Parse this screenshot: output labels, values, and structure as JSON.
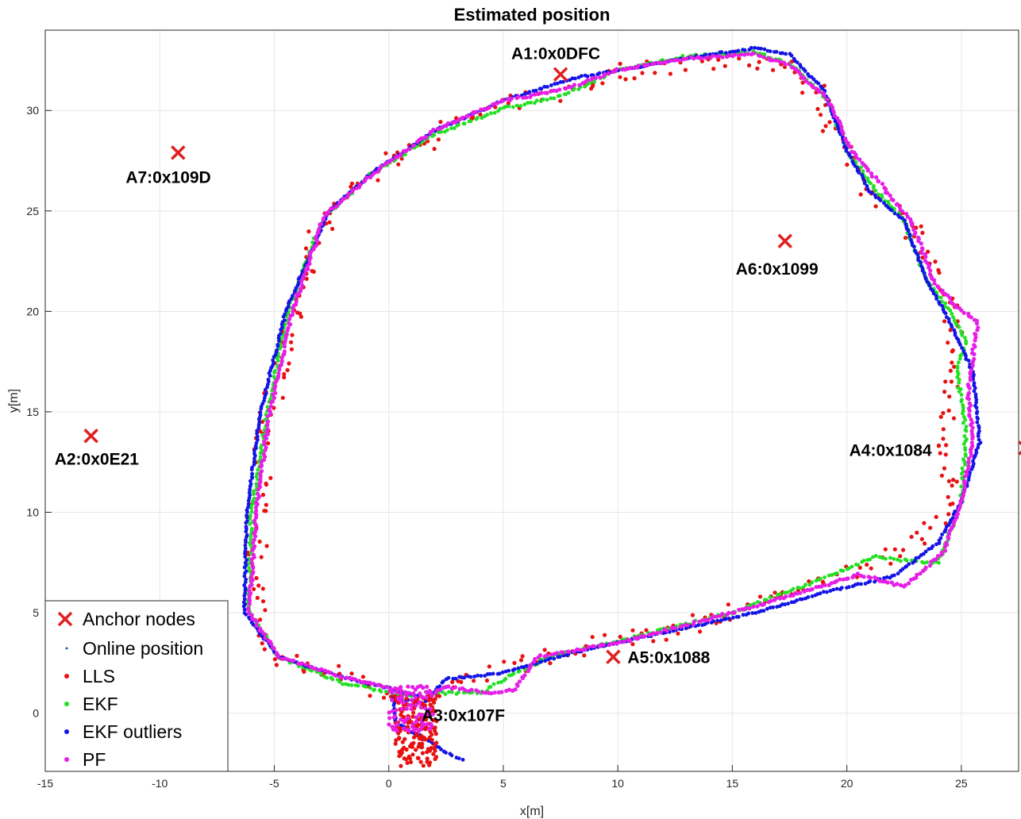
{
  "chart_data": {
    "type": "scatter",
    "title": "Estimated position",
    "xlabel": "x[m]",
    "ylabel": "y[m]",
    "xlim": [
      -15,
      27.5
    ],
    "ylim": [
      -2.9,
      34
    ],
    "xticks": [
      -15,
      -10,
      -5,
      0,
      5,
      10,
      15,
      20,
      25
    ],
    "yticks": [
      0,
      5,
      10,
      15,
      20,
      25,
      30
    ],
    "grid": true,
    "legend_position": "bottom-left",
    "colors": {
      "anchor": "#e02020",
      "online": "#1f5fa8",
      "lls": "#e81010",
      "ekf": "#22e022",
      "ekf_outliers": "#1414e6",
      "pf": "#e61ee6"
    },
    "anchors": [
      {
        "label": "A1:0x0DFC",
        "x": 7.5,
        "y": 31.8
      },
      {
        "label": "A2:0x0E21",
        "x": -13.0,
        "y": 13.8
      },
      {
        "label": "A3:0x107F",
        "x": 1.5,
        "y": 0.0
      },
      {
        "label": "A4:0x1084",
        "x": 27.8,
        "y": 13.2
      },
      {
        "label": "A5:0x1088",
        "x": 9.8,
        "y": 2.8
      },
      {
        "label": "A6:0x1099",
        "x": 17.3,
        "y": 23.5
      },
      {
        "label": "A7:0x109D",
        "x": -9.2,
        "y": 27.9
      }
    ],
    "series": [
      {
        "name": "Anchor nodes",
        "marker": "x"
      },
      {
        "name": "Online position",
        "marker": "dot"
      },
      {
        "name": "LLS",
        "marker": "dot",
        "path": [
          [
            1.0,
            0.2
          ],
          [
            -2.0,
            1.8
          ],
          [
            -4.5,
            2.6
          ],
          [
            -5.5,
            3.5
          ],
          [
            -5.9,
            6.0
          ],
          [
            -5.7,
            10.0
          ],
          [
            -5.2,
            15.0
          ],
          [
            -4.2,
            20.0
          ],
          [
            -2.8,
            24.8
          ],
          [
            -0.5,
            27.0
          ],
          [
            2.0,
            28.8
          ],
          [
            5.0,
            30.3
          ],
          [
            7.5,
            30.9
          ],
          [
            10.0,
            31.9
          ],
          [
            13.0,
            32.4
          ],
          [
            16.0,
            32.5
          ],
          [
            17.5,
            32.1
          ],
          [
            19.0,
            30.5
          ],
          [
            19.8,
            28.0
          ],
          [
            21.0,
            26.2
          ],
          [
            22.8,
            24.5
          ],
          [
            23.8,
            21.5
          ],
          [
            24.8,
            19.5
          ],
          [
            24.5,
            17.0
          ],
          [
            24.3,
            14.0
          ],
          [
            24.6,
            11.0
          ],
          [
            23.0,
            8.5
          ],
          [
            20.5,
            7.2
          ],
          [
            17.5,
            6.0
          ],
          [
            14.5,
            4.8
          ],
          [
            10.0,
            3.6
          ],
          [
            6.5,
            2.8
          ],
          [
            3.5,
            1.8
          ],
          [
            1.5,
            0.5
          ]
        ]
      },
      {
        "name": "EKF",
        "marker": "dot",
        "path": [
          [
            1.0,
            0.8
          ],
          [
            -2.0,
            1.5
          ],
          [
            -4.8,
            2.8
          ],
          [
            -6.1,
            5.0
          ],
          [
            -6.0,
            10.0
          ],
          [
            -5.3,
            15.0
          ],
          [
            -4.4,
            20.0
          ],
          [
            -2.9,
            24.6
          ],
          [
            -0.8,
            26.8
          ],
          [
            2.0,
            28.8
          ],
          [
            5.0,
            30.1
          ],
          [
            7.5,
            30.7
          ],
          [
            10.0,
            32.0
          ],
          [
            13.0,
            32.7
          ],
          [
            16.0,
            32.9
          ],
          [
            17.6,
            32.3
          ],
          [
            19.2,
            30.5
          ],
          [
            20.0,
            28.0
          ],
          [
            21.3,
            26.0
          ],
          [
            22.5,
            24.5
          ],
          [
            23.5,
            21.5
          ],
          [
            24.5,
            20.0
          ],
          [
            25.2,
            18.5
          ],
          [
            24.8,
            17.0
          ],
          [
            25.2,
            14.0
          ],
          [
            25.0,
            10.5
          ],
          [
            24.0,
            7.5
          ],
          [
            22.5,
            7.6
          ],
          [
            21.3,
            7.8
          ],
          [
            18.5,
            6.5
          ],
          [
            15.0,
            5.0
          ],
          [
            10.0,
            3.6
          ],
          [
            7.0,
            2.8
          ],
          [
            5.5,
            2.0
          ],
          [
            4.0,
            1.0
          ],
          [
            2.0,
            1.0
          ]
        ]
      },
      {
        "name": "EKF outliers",
        "marker": "dot",
        "path": [
          [
            1.5,
            0.8
          ],
          [
            -2.0,
            1.8
          ],
          [
            -4.8,
            2.8
          ],
          [
            -6.3,
            5.0
          ],
          [
            -6.2,
            10.0
          ],
          [
            -5.6,
            15.0
          ],
          [
            -4.5,
            20.0
          ],
          [
            -2.6,
            25.0
          ],
          [
            -0.6,
            27.0
          ],
          [
            2.0,
            29.0
          ],
          [
            5.0,
            30.5
          ],
          [
            8.0,
            31.6
          ],
          [
            11.0,
            32.2
          ],
          [
            14.0,
            32.8
          ],
          [
            16.0,
            33.1
          ],
          [
            17.5,
            32.8
          ],
          [
            19.0,
            31.0
          ],
          [
            20.0,
            28.0
          ],
          [
            21.0,
            26.0
          ],
          [
            22.5,
            24.5
          ],
          [
            23.5,
            21.5
          ],
          [
            24.5,
            19.5
          ],
          [
            25.5,
            17.0
          ],
          [
            25.8,
            13.5
          ],
          [
            25.0,
            10.5
          ],
          [
            24.0,
            8.5
          ],
          [
            22.0,
            6.8
          ],
          [
            19.0,
            6.0
          ],
          [
            16.0,
            5.0
          ],
          [
            12.0,
            4.0
          ],
          [
            8.0,
            3.0
          ],
          [
            5.0,
            2.0
          ],
          [
            2.5,
            1.7
          ],
          [
            1.5,
            0.5
          ],
          [
            0.2,
            0.8
          ],
          [
            0.3,
            -0.5
          ],
          [
            1.5,
            -1.2
          ],
          [
            2.5,
            -2.0
          ],
          [
            3.2,
            -2.3
          ]
        ]
      },
      {
        "name": "PF",
        "marker": "dot",
        "path": [
          [
            1.0,
            1.0
          ],
          [
            -2.0,
            1.8
          ],
          [
            -4.8,
            2.8
          ],
          [
            -6.1,
            5.0
          ],
          [
            -5.8,
            10.0
          ],
          [
            -5.2,
            15.0
          ],
          [
            -4.2,
            20.0
          ],
          [
            -2.8,
            24.8
          ],
          [
            -0.5,
            27.0
          ],
          [
            2.0,
            29.0
          ],
          [
            5.0,
            30.5
          ],
          [
            7.5,
            31.0
          ],
          [
            10.0,
            32.0
          ],
          [
            13.0,
            32.6
          ],
          [
            16.0,
            32.8
          ],
          [
            17.6,
            32.2
          ],
          [
            19.2,
            30.5
          ],
          [
            20.2,
            28.0
          ],
          [
            21.5,
            26.3
          ],
          [
            22.8,
            24.5
          ],
          [
            23.8,
            21.5
          ],
          [
            24.8,
            20.2
          ],
          [
            25.7,
            19.5
          ],
          [
            25.3,
            16.0
          ],
          [
            25.5,
            13.5
          ],
          [
            25.0,
            10.5
          ],
          [
            24.2,
            8.0
          ],
          [
            22.5,
            6.3
          ],
          [
            20.5,
            6.9
          ],
          [
            18.0,
            6.0
          ],
          [
            15.0,
            5.0
          ],
          [
            10.0,
            3.5
          ],
          [
            6.5,
            2.8
          ],
          [
            5.5,
            1.2
          ],
          [
            4.5,
            1.0
          ],
          [
            2.5,
            1.3
          ],
          [
            1.5,
            0.8
          ]
        ]
      }
    ]
  }
}
